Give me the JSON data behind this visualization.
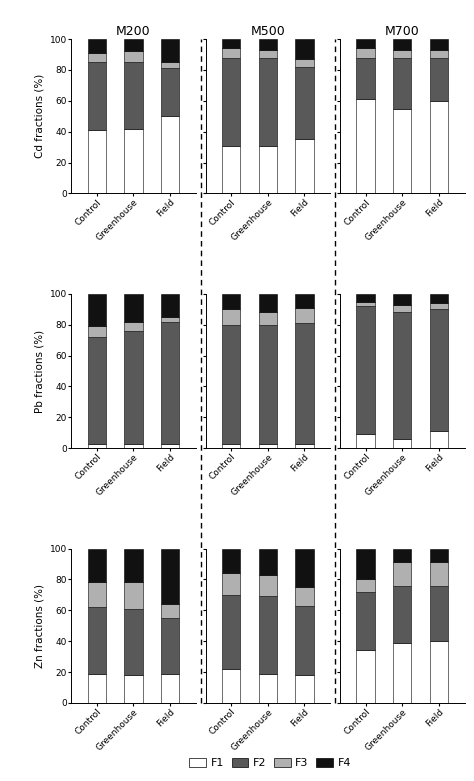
{
  "groups": [
    "M200",
    "M500",
    "M700"
  ],
  "conditions": [
    "Control",
    "Greenhouse",
    "Field"
  ],
  "colors": {
    "F1": "#ffffff",
    "F2": "#595959",
    "F3": "#b0b0b0",
    "F4": "#111111"
  },
  "cd_data": {
    "M200": {
      "Control": [
        41,
        44,
        6,
        9
      ],
      "Greenhouse": [
        42,
        43,
        7,
        8
      ],
      "Field": [
        50,
        31,
        4,
        15
      ]
    },
    "M500": {
      "Control": [
        31,
        57,
        6,
        6
      ],
      "Greenhouse": [
        31,
        57,
        5,
        7
      ],
      "Field": [
        35,
        47,
        5,
        13
      ]
    },
    "M700": {
      "Control": [
        61,
        27,
        6,
        6
      ],
      "Greenhouse": [
        55,
        33,
        5,
        7
      ],
      "Field": [
        60,
        28,
        5,
        7
      ]
    }
  },
  "pb_data": {
    "M200": {
      "Control": [
        3,
        69,
        7,
        21
      ],
      "Greenhouse": [
        3,
        73,
        6,
        18
      ],
      "Field": [
        3,
        79,
        3,
        15
      ]
    },
    "M500": {
      "Control": [
        3,
        77,
        10,
        10
      ],
      "Greenhouse": [
        3,
        77,
        8,
        12
      ],
      "Field": [
        3,
        78,
        10,
        9
      ]
    },
    "M700": {
      "Control": [
        9,
        83,
        3,
        5
      ],
      "Greenhouse": [
        6,
        82,
        5,
        7
      ],
      "Field": [
        11,
        79,
        4,
        6
      ]
    }
  },
  "zn_data": {
    "M200": {
      "Control": [
        19,
        43,
        16,
        22
      ],
      "Greenhouse": [
        18,
        43,
        17,
        22
      ],
      "Field": [
        19,
        36,
        9,
        36
      ]
    },
    "M500": {
      "Control": [
        22,
        48,
        14,
        16
      ],
      "Greenhouse": [
        19,
        50,
        14,
        17
      ],
      "Field": [
        18,
        45,
        12,
        25
      ]
    },
    "M700": {
      "Control": [
        34,
        38,
        8,
        20
      ],
      "Greenhouse": [
        39,
        37,
        15,
        9
      ],
      "Field": [
        40,
        36,
        15,
        9
      ]
    }
  },
  "ylabels": [
    "Cd fractions (%)",
    "Pb fractions (%)",
    "Zn fractions (%)"
  ],
  "panel_titles": [
    "M200",
    "M500",
    "M700"
  ],
  "legend_labels": [
    "F1",
    "F2",
    "F3",
    "F4"
  ]
}
